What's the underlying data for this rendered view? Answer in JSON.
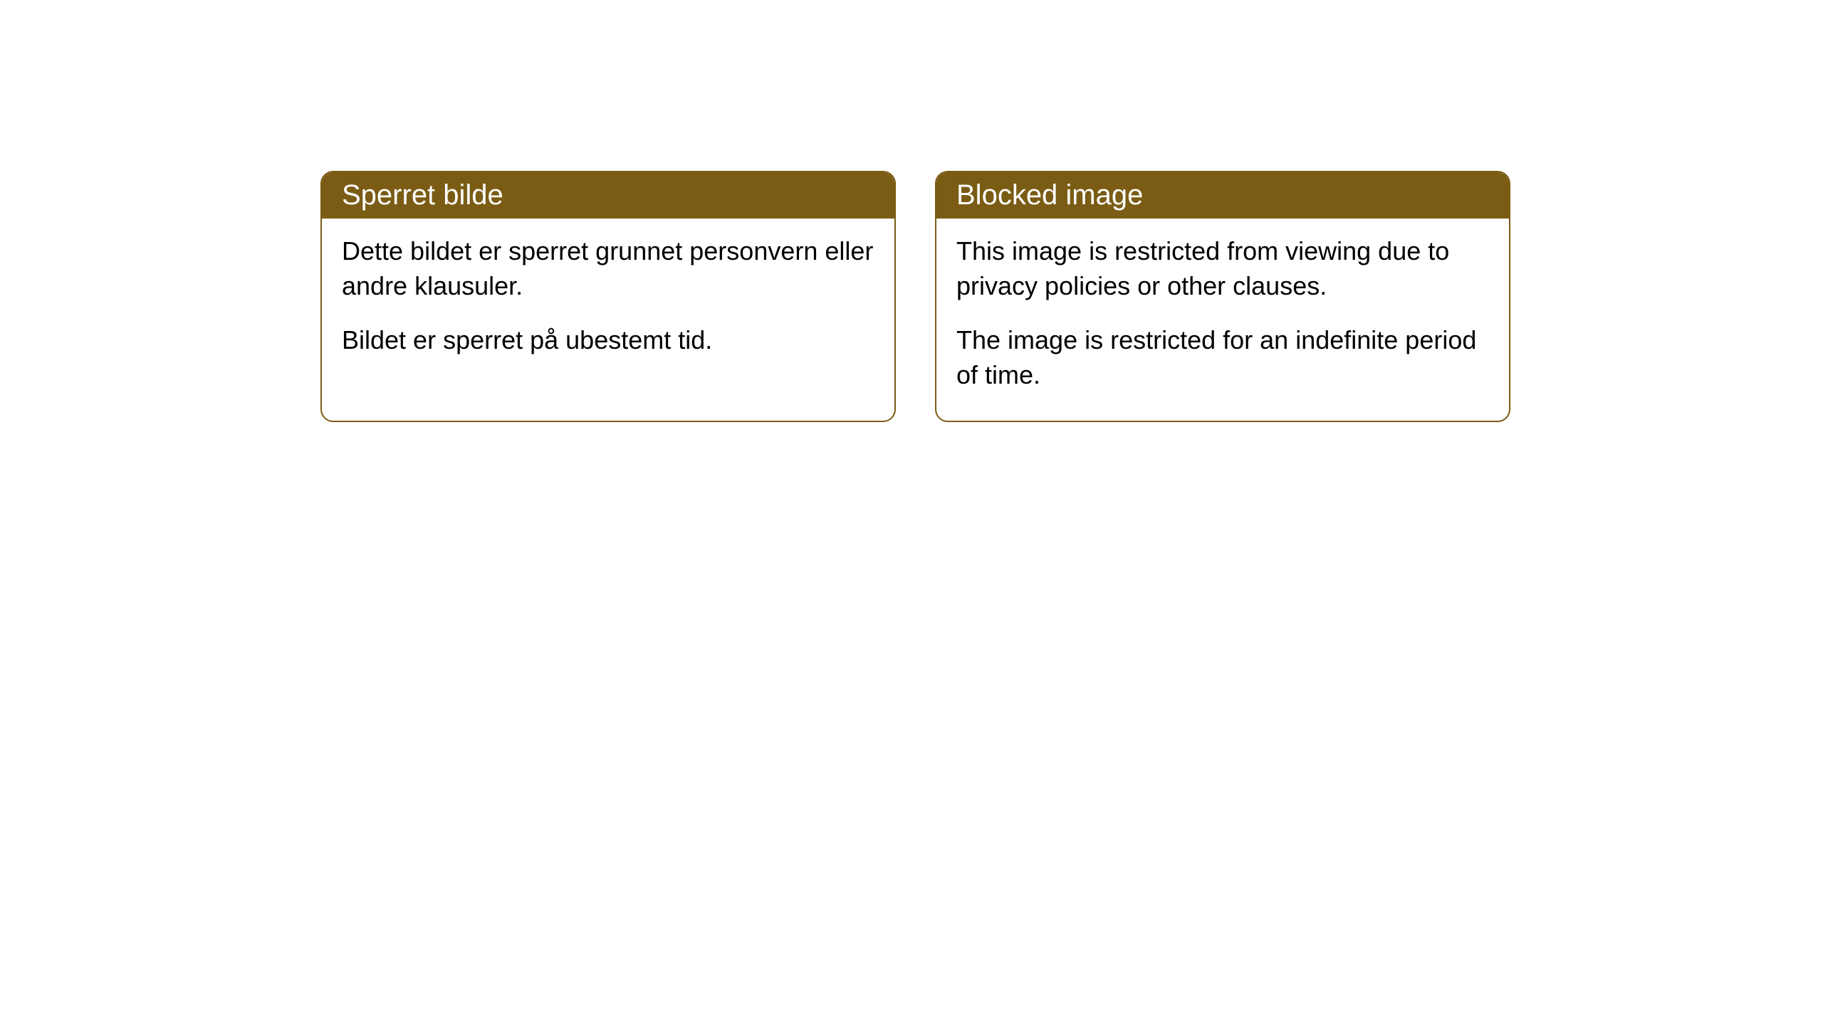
{
  "cards": {
    "norwegian": {
      "header": "Sperret bilde",
      "paragraph1": "Dette bildet er sperret grunnet personvern eller andre klausuler.",
      "paragraph2": "Bildet er sperret på ubestemt tid."
    },
    "english": {
      "header": "Blocked image",
      "paragraph1": "This image is restricted from viewing due to privacy policies or other clauses.",
      "paragraph2": "The image is restricted for an indefinite period of time."
    }
  },
  "styling": {
    "card_border_color": "#7a5c14",
    "card_header_bg": "#7a5c14",
    "card_header_text_color": "#ffffff",
    "card_body_bg": "#ffffff",
    "card_body_text_color": "#000000",
    "border_radius": 18,
    "header_fontsize": 40,
    "body_fontsize": 36
  }
}
